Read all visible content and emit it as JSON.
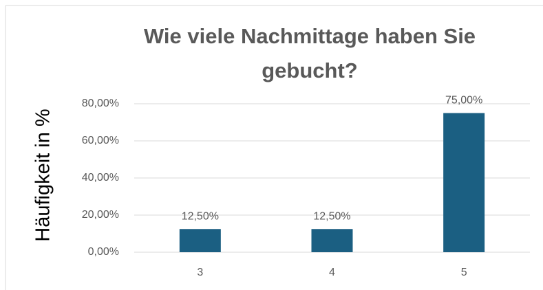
{
  "chart_data": {
    "type": "bar",
    "title": "Wie viele Nachmittage haben Sie gebucht?",
    "ylabel": "Häufigkeit in %",
    "categories": [
      "3",
      "4",
      "5"
    ],
    "values": [
      12.5,
      12.5,
      75
    ],
    "value_labels": [
      "12,50%",
      "12,50%",
      "75,00%"
    ],
    "color": "#1b5f82",
    "ylim": [
      0,
      80
    ],
    "yticks": [
      {
        "value": 0,
        "label": "0,00%"
      },
      {
        "value": 20,
        "label": "20,00%"
      },
      {
        "value": 40,
        "label": "40,00%"
      },
      {
        "value": 60,
        "label": "60,00%"
      },
      {
        "value": 80,
        "label": "80,00%"
      }
    ],
    "grid": true
  }
}
